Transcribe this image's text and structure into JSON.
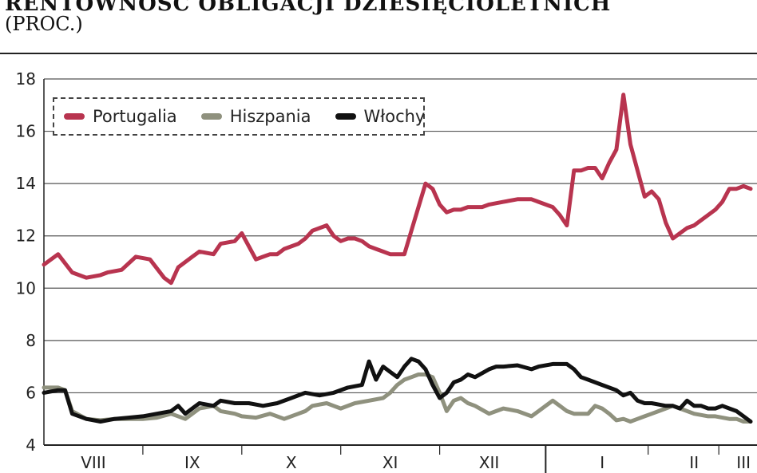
{
  "chart_data": {
    "type": "line",
    "title": "RENTOWNOŚĆ OBLIGACJI DZIESIĘCIOLETNICH",
    "subtitle": "(PROC.)",
    "ylim": [
      4,
      18
    ],
    "yticks": [
      4,
      6,
      8,
      10,
      12,
      14,
      16,
      18
    ],
    "x_range": [
      0,
      100
    ],
    "month_labels": [
      {
        "label": "VIII",
        "x": 7
      },
      {
        "label": "IX",
        "x": 21
      },
      {
        "label": "X",
        "x": 35
      },
      {
        "label": "XI",
        "x": 49
      },
      {
        "label": "XII",
        "x": 63
      },
      {
        "label": "I",
        "x": 79
      },
      {
        "label": "II",
        "x": 92
      },
      {
        "label": "III",
        "x": 99
      }
    ],
    "grid": true,
    "legend_position": "top-left",
    "series": [
      {
        "name": "Portugalia",
        "color": "#b8344f",
        "x": [
          0,
          2,
          4,
          6,
          8,
          9,
          11,
          13,
          15,
          17,
          18,
          19,
          20,
          21,
          22,
          24,
          25,
          27,
          28,
          30,
          31,
          32,
          33,
          34,
          36,
          37,
          38,
          40,
          41,
          42,
          43,
          44,
          45,
          46,
          47,
          48,
          49,
          50,
          51,
          52,
          54,
          55,
          56,
          57,
          58,
          59,
          60,
          62,
          63,
          65,
          67,
          69,
          70,
          72,
          73,
          74,
          75,
          76,
          77,
          78,
          79,
          80,
          81,
          82,
          83,
          84,
          85,
          86,
          87,
          88,
          89,
          90,
          91,
          92,
          93,
          94,
          95,
          96,
          97,
          98,
          99,
          100
        ],
        "values": [
          10.9,
          11.3,
          10.6,
          10.4,
          10.5,
          10.6,
          10.7,
          11.2,
          11.1,
          10.4,
          10.2,
          10.8,
          11.0,
          11.2,
          11.4,
          11.3,
          11.7,
          11.8,
          12.1,
          11.1,
          11.2,
          11.3,
          11.3,
          11.5,
          11.7,
          11.9,
          12.2,
          12.4,
          12.0,
          11.8,
          11.9,
          11.9,
          11.8,
          11.6,
          11.5,
          11.4,
          11.3,
          11.3,
          11.3,
          12.2,
          14.0,
          13.8,
          13.2,
          12.9,
          13.0,
          13.0,
          13.1,
          13.1,
          13.2,
          13.3,
          13.4,
          13.4,
          13.3,
          13.1,
          12.8,
          12.4,
          14.5,
          14.5,
          14.6,
          14.6,
          14.2,
          14.8,
          15.3,
          17.4,
          15.5,
          14.5,
          13.5,
          13.7,
          13.4,
          12.5,
          11.9,
          12.1,
          12.3,
          12.4,
          12.6,
          12.8,
          13.0,
          13.3,
          13.8,
          13.8,
          13.9,
          13.8
        ]
      },
      {
        "name": "Hiszpania",
        "color": "#8f917e",
        "x": [
          0,
          2,
          3,
          4,
          6,
          8,
          10,
          12,
          14,
          16,
          18,
          20,
          21,
          22,
          24,
          25,
          27,
          28,
          30,
          32,
          34,
          36,
          37,
          38,
          40,
          41,
          42,
          44,
          46,
          48,
          49,
          50,
          51,
          52,
          53,
          54,
          55,
          56,
          57,
          58,
          59,
          60,
          61,
          63,
          64,
          65,
          67,
          69,
          70,
          71,
          72,
          73,
          74,
          75,
          76,
          77,
          78,
          79,
          80,
          81,
          82,
          83,
          84,
          85,
          86,
          87,
          88,
          89,
          90,
          91,
          92,
          93,
          94,
          95,
          96,
          97,
          98,
          99,
          100
        ],
        "values": [
          6.2,
          6.2,
          6.1,
          5.3,
          5.0,
          4.95,
          5.0,
          5.0,
          5.0,
          5.05,
          5.2,
          5.0,
          5.2,
          5.4,
          5.5,
          5.3,
          5.2,
          5.1,
          5.05,
          5.2,
          5.0,
          5.2,
          5.3,
          5.5,
          5.6,
          5.5,
          5.4,
          5.6,
          5.7,
          5.8,
          6.0,
          6.3,
          6.5,
          6.6,
          6.7,
          6.7,
          6.6,
          6.0,
          5.3,
          5.7,
          5.8,
          5.6,
          5.5,
          5.2,
          5.3,
          5.4,
          5.3,
          5.1,
          5.3,
          5.5,
          5.7,
          5.5,
          5.3,
          5.2,
          5.2,
          5.2,
          5.5,
          5.4,
          5.2,
          4.95,
          5.0,
          4.9,
          5.0,
          5.1,
          5.2,
          5.3,
          5.4,
          5.5,
          5.4,
          5.3,
          5.2,
          5.15,
          5.1,
          5.1,
          5.05,
          5.0,
          5.0,
          4.9,
          4.9
        ]
      },
      {
        "name": "Włochy",
        "color": "#111111",
        "x": [
          0,
          2,
          3,
          4,
          6,
          8,
          10,
          12,
          14,
          16,
          18,
          19,
          20,
          21,
          22,
          24,
          25,
          27,
          29,
          31,
          33,
          35,
          37,
          39,
          41,
          43,
          45,
          46,
          47,
          48,
          49,
          50,
          51,
          52,
          53,
          54,
          55,
          56,
          57,
          58,
          59,
          60,
          61,
          63,
          64,
          65,
          67,
          69,
          70,
          72,
          74,
          75,
          76,
          77,
          79,
          81,
          82,
          83,
          84,
          85,
          86,
          88,
          89,
          90,
          91,
          92,
          93,
          94,
          95,
          96,
          97,
          98,
          99,
          100
        ],
        "values": [
          6.0,
          6.1,
          6.1,
          5.2,
          5.0,
          4.9,
          5.0,
          5.05,
          5.1,
          5.2,
          5.3,
          5.5,
          5.2,
          5.4,
          5.6,
          5.5,
          5.7,
          5.6,
          5.6,
          5.5,
          5.6,
          5.8,
          6.0,
          5.9,
          6.0,
          6.2,
          6.3,
          7.2,
          6.5,
          7.0,
          6.8,
          6.6,
          7.0,
          7.3,
          7.2,
          6.9,
          6.3,
          5.8,
          6.0,
          6.4,
          6.5,
          6.7,
          6.6,
          6.9,
          7.0,
          7.0,
          7.05,
          6.9,
          7.0,
          7.1,
          7.1,
          6.9,
          6.6,
          6.5,
          6.3,
          6.1,
          5.9,
          6.0,
          5.7,
          5.6,
          5.6,
          5.5,
          5.5,
          5.4,
          5.7,
          5.5,
          5.5,
          5.4,
          5.4,
          5.5,
          5.4,
          5.3,
          5.1,
          4.9
        ]
      }
    ]
  }
}
